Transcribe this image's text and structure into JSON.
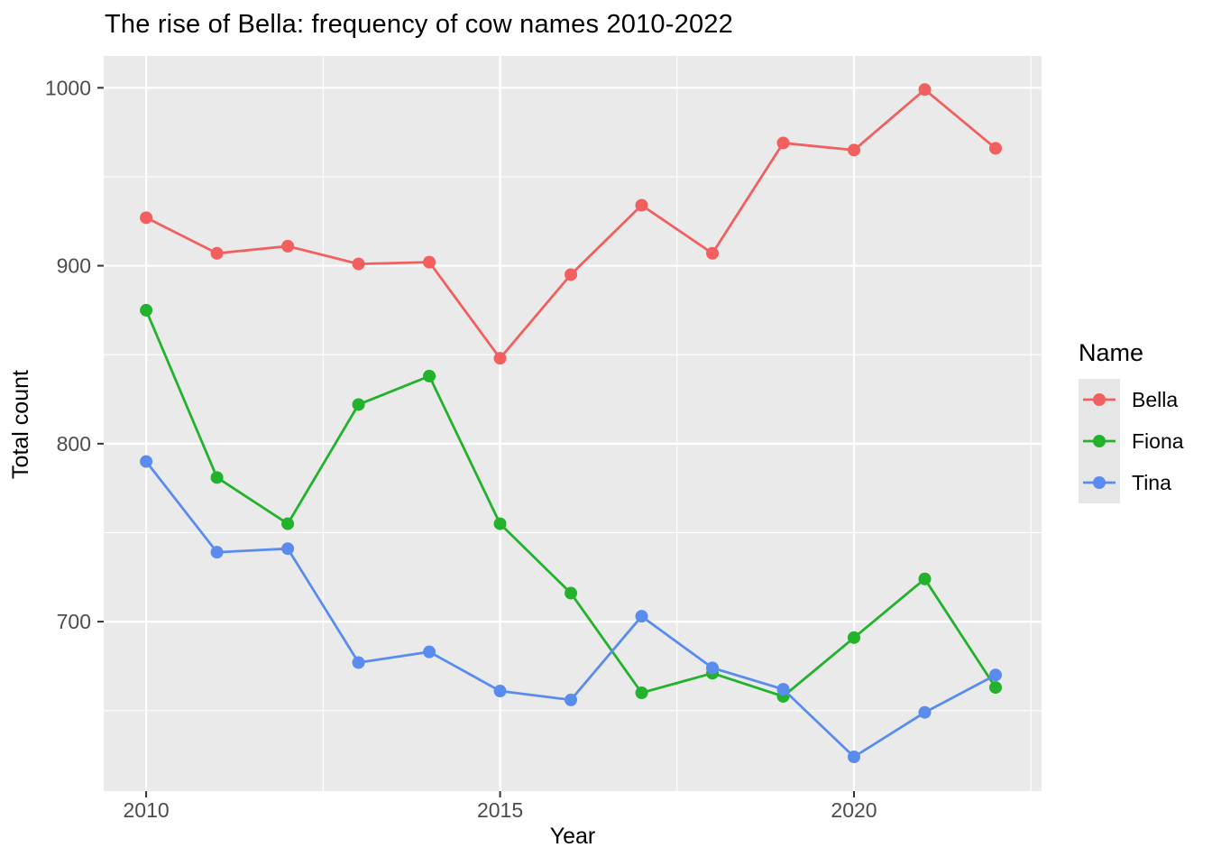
{
  "chart_data": {
    "type": "line",
    "title": "The rise of Bella: frequency of cow names 2010-2022",
    "xlabel": "Year",
    "ylabel": "Total count",
    "legend_title": "Name",
    "legend_position": "right",
    "grid": true,
    "x": [
      2010,
      2011,
      2012,
      2013,
      2014,
      2015,
      2016,
      2017,
      2018,
      2019,
      2020,
      2021,
      2022
    ],
    "series": [
      {
        "name": "Bella",
        "color": "#F15F5F",
        "values": [
          927,
          907,
          911,
          901,
          902,
          848,
          895,
          934,
          907,
          969,
          965,
          999,
          966
        ]
      },
      {
        "name": "Fiona",
        "color": "#22B22C",
        "values": [
          875,
          781,
          755,
          822,
          838,
          755,
          716,
          660,
          671,
          658,
          691,
          724,
          663
        ]
      },
      {
        "name": "Tina",
        "color": "#5A8CF0",
        "values": [
          790,
          739,
          741,
          677,
          683,
          661,
          656,
          703,
          674,
          662,
          624,
          649,
          670
        ]
      }
    ],
    "x_ticks": [
      2010,
      2015,
      2020
    ],
    "y_ticks": [
      700,
      800,
      900,
      1000
    ],
    "x_minor_ticks": [
      2012.5,
      2017.5,
      2022.5
    ],
    "y_minor_ticks": [
      650,
      750,
      850,
      950
    ],
    "xlim": [
      2009.4,
      2022.65
    ],
    "ylim": [
      604.75,
      1017.9
    ],
    "colors": {
      "panel_background": "#EAEAEA",
      "gridline": "#FFFFFF",
      "tick_mark": "#333333",
      "tick_label": "#4D4D4D",
      "legend_key_background": "#E6E6E6",
      "text": "#000000"
    }
  }
}
